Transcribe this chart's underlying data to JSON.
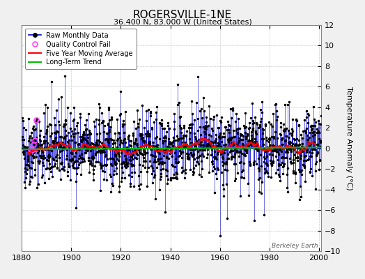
{
  "title": "ROGERSVILLE-1NE",
  "subtitle": "36.400 N, 83.000 W (United States)",
  "ylabel": "Temperature Anomaly (°C)",
  "watermark": "Berkeley Earth",
  "xlim": [
    1880,
    2001
  ],
  "ylim": [
    -10,
    12
  ],
  "yticks": [
    -10,
    -8,
    -6,
    -4,
    -2,
    0,
    2,
    4,
    6,
    8,
    10,
    12
  ],
  "xticks": [
    1880,
    1900,
    1920,
    1940,
    1960,
    1980,
    2000
  ],
  "start_year": 1880,
  "end_year": 2000,
  "n_months": 1452,
  "seed": 42,
  "background_color": "#f0f0f0",
  "plot_bg_color": "#ffffff",
  "line_color": "#0000cc",
  "ma_color": "#ff0000",
  "trend_color": "#00bb00",
  "qc_color": "#ff44ff",
  "title_fontsize": 11,
  "subtitle_fontsize": 8,
  "ylabel_fontsize": 8,
  "tick_fontsize": 8,
  "noise_std": 1.8,
  "qc_year_start": 1883,
  "qc_year_end": 1886
}
